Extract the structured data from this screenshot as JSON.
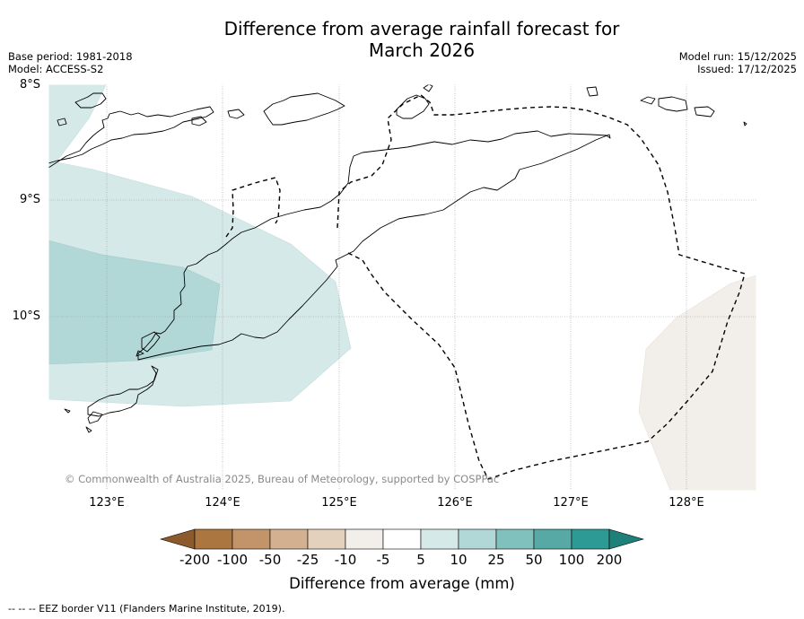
{
  "title": "Difference from average rainfall forecast for\nMarch 2026",
  "meta_left": [
    "Base period: 1981-2018",
    "Model: ACCESS-S2"
  ],
  "meta_right": [
    "Model run: 15/12/2025",
    "Issued: 17/12/2025"
  ],
  "map": {
    "extent": {
      "lon_min": 122.5,
      "lon_max": 128.6,
      "lat_min": -11.5,
      "lat_max": -8.0
    },
    "lat_labels": [
      {
        "lat": -8,
        "label": "8°S"
      },
      {
        "lat": -9,
        "label": "9°S"
      },
      {
        "lat": -10,
        "label": "10°S"
      }
    ],
    "lon_labels": [
      {
        "lon": 123,
        "label": "123°E"
      },
      {
        "lon": 124,
        "label": "124°E"
      },
      {
        "lon": 125,
        "label": "125°E"
      },
      {
        "lon": 126,
        "label": "126°E"
      },
      {
        "lon": 127,
        "label": "127°E"
      },
      {
        "lon": 128,
        "label": "128°E"
      }
    ],
    "copyright": "© Commonwealth of Australia 2025, Bureau of Meteorology, supported by COSPPac"
  },
  "colorbar": {
    "label": "Difference from average (mm)",
    "ticks": [
      "-200",
      "-100",
      "-50",
      "-25",
      "-10",
      "-5",
      "5",
      "10",
      "25",
      "50",
      "100",
      "200"
    ],
    "colors": [
      "#8c5a2b",
      "#ab7640",
      "#c39469",
      "#d3b08f",
      "#e3d0bd",
      "#f2efea",
      "#ffffff",
      "#d5e9e8",
      "#b1d8d7",
      "#80c1bd",
      "#57a9a6",
      "#2e9a95",
      "#1f7f79"
    ]
  },
  "footnote": "--  --  -- EEZ border V11 (Flanders Marine Institute, 2019)."
}
